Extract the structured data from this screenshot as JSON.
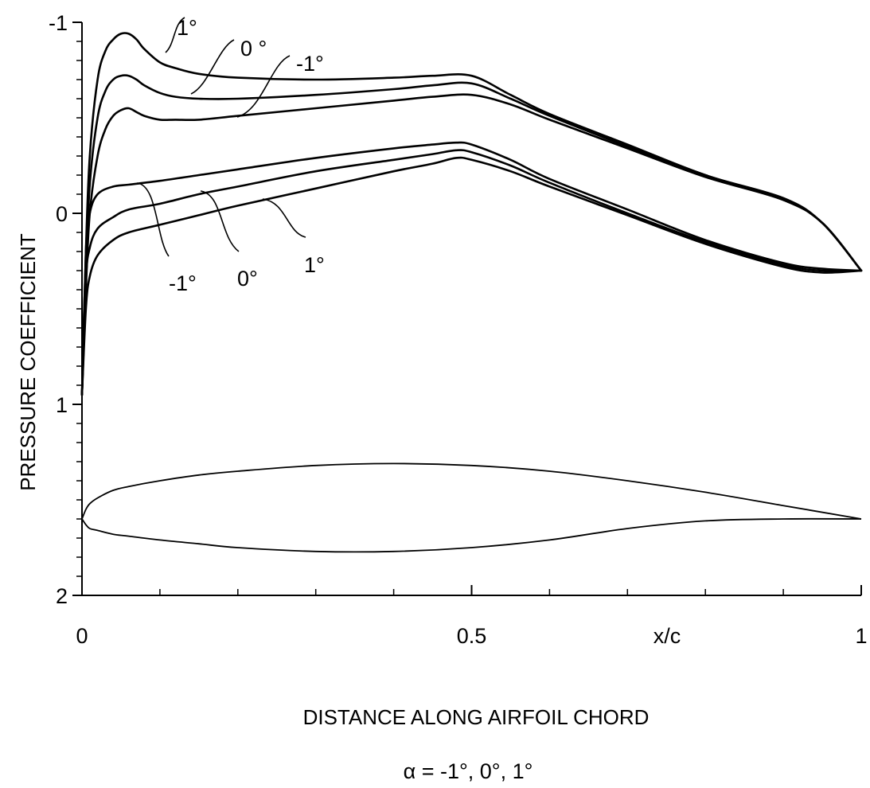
{
  "chart_data": {
    "type": "line",
    "xlabel": "DISTANCE ALONG AIRFOIL CHORD",
    "ylabel": "PRESSURE COEFFICIENT",
    "x_unit_label": "x/c",
    "subtitle": "α = -1°, 0°, 1°",
    "xlim": [
      0,
      1
    ],
    "ylim": [
      2,
      -1
    ],
    "y_inverted": true,
    "x_ticks": [
      {
        "value": 0,
        "label": "0"
      },
      {
        "value": 0.5,
        "label": "0.5"
      },
      {
        "value": 1,
        "label": "1"
      }
    ],
    "x_minor_ticks": [
      0.1,
      0.2,
      0.3,
      0.4,
      0.6,
      0.7,
      0.8,
      0.9
    ],
    "y_ticks": [
      {
        "value": -1,
        "label": "-1"
      },
      {
        "value": 0,
        "label": "0"
      },
      {
        "value": 1,
        "label": "1"
      },
      {
        "value": 2,
        "label": "2"
      }
    ],
    "y_minor_ticks": [
      -0.9,
      -0.8,
      -0.7,
      -0.6,
      -0.5,
      -0.4,
      -0.3,
      -0.2,
      -0.1,
      0.1,
      0.2,
      0.3,
      0.4,
      0.5,
      0.6,
      0.7,
      0.8,
      0.9,
      1.1,
      1.2,
      1.3,
      1.4,
      1.5,
      1.6,
      1.7,
      1.8,
      1.9
    ],
    "grid": false,
    "line_color": "#000000",
    "series": [
      {
        "name": "1°",
        "surface": "upper",
        "x": [
          0,
          0.005,
          0.01,
          0.02,
          0.03,
          0.04,
          0.05,
          0.06,
          0.07,
          0.08,
          0.1,
          0.12,
          0.15,
          0.2,
          0.3,
          0.4,
          0.45,
          0.5,
          0.55,
          0.6,
          0.7,
          0.8,
          0.9,
          0.95,
          1.0
        ],
        "y": [
          0.95,
          0.2,
          -0.3,
          -0.7,
          -0.85,
          -0.91,
          -0.94,
          -0.94,
          -0.91,
          -0.86,
          -0.79,
          -0.76,
          -0.73,
          -0.71,
          -0.7,
          -0.71,
          -0.72,
          -0.72,
          -0.62,
          -0.52,
          -0.36,
          -0.2,
          -0.08,
          0.05,
          0.3
        ]
      },
      {
        "name": "0°",
        "surface": "upper",
        "x": [
          0,
          0.005,
          0.01,
          0.02,
          0.03,
          0.04,
          0.05,
          0.06,
          0.07,
          0.08,
          0.1,
          0.12,
          0.15,
          0.2,
          0.3,
          0.4,
          0.45,
          0.5,
          0.55,
          0.6,
          0.7,
          0.8,
          0.9,
          0.95,
          1.0
        ],
        "y": [
          0.95,
          0.3,
          -0.15,
          -0.5,
          -0.64,
          -0.7,
          -0.72,
          -0.72,
          -0.7,
          -0.67,
          -0.63,
          -0.61,
          -0.6,
          -0.6,
          -0.62,
          -0.65,
          -0.67,
          -0.68,
          -0.6,
          -0.51,
          -0.35,
          -0.2,
          -0.07,
          0.05,
          0.3
        ]
      },
      {
        "name": "-1°",
        "surface": "upper",
        "x": [
          0,
          0.005,
          0.01,
          0.02,
          0.03,
          0.04,
          0.05,
          0.06,
          0.07,
          0.08,
          0.1,
          0.12,
          0.15,
          0.2,
          0.3,
          0.4,
          0.45,
          0.5,
          0.55,
          0.6,
          0.7,
          0.8,
          0.9,
          0.95,
          1.0
        ],
        "y": [
          0.95,
          0.4,
          0.0,
          -0.3,
          -0.44,
          -0.51,
          -0.54,
          -0.55,
          -0.53,
          -0.51,
          -0.49,
          -0.49,
          -0.49,
          -0.51,
          -0.55,
          -0.59,
          -0.61,
          -0.62,
          -0.57,
          -0.49,
          -0.34,
          -0.19,
          -0.07,
          0.05,
          0.3
        ]
      },
      {
        "name": "-1°",
        "surface": "lower",
        "x": [
          0,
          0.005,
          0.01,
          0.02,
          0.04,
          0.06,
          0.1,
          0.15,
          0.2,
          0.3,
          0.4,
          0.45,
          0.48,
          0.5,
          0.55,
          0.6,
          0.7,
          0.8,
          0.9,
          0.95,
          1.0
        ],
        "y": [
          0.95,
          0.2,
          0.0,
          -0.1,
          -0.14,
          -0.15,
          -0.17,
          -0.2,
          -0.23,
          -0.29,
          -0.34,
          -0.36,
          -0.37,
          -0.36,
          -0.28,
          -0.18,
          -0.02,
          0.14,
          0.26,
          0.29,
          0.3
        ]
      },
      {
        "name": "0°",
        "surface": "lower",
        "x": [
          0,
          0.005,
          0.01,
          0.02,
          0.04,
          0.06,
          0.1,
          0.15,
          0.2,
          0.3,
          0.4,
          0.45,
          0.48,
          0.5,
          0.55,
          0.6,
          0.7,
          0.8,
          0.9,
          0.95,
          1.0
        ],
        "y": [
          0.95,
          0.35,
          0.18,
          0.08,
          0.02,
          -0.02,
          -0.05,
          -0.1,
          -0.14,
          -0.22,
          -0.28,
          -0.31,
          -0.33,
          -0.32,
          -0.25,
          -0.16,
          0.0,
          0.15,
          0.27,
          0.3,
          0.3
        ]
      },
      {
        "name": "1°",
        "surface": "lower",
        "x": [
          0,
          0.005,
          0.01,
          0.02,
          0.04,
          0.06,
          0.1,
          0.15,
          0.2,
          0.3,
          0.4,
          0.45,
          0.48,
          0.5,
          0.55,
          0.6,
          0.7,
          0.8,
          0.9,
          0.95,
          1.0
        ],
        "y": [
          0.95,
          0.5,
          0.33,
          0.22,
          0.14,
          0.1,
          0.06,
          0.01,
          -0.04,
          -0.13,
          -0.22,
          -0.26,
          -0.29,
          -0.28,
          -0.22,
          -0.14,
          0.01,
          0.16,
          0.28,
          0.31,
          0.3
        ]
      }
    ],
    "curve_labels": [
      {
        "text": "1°",
        "surface": "upper"
      },
      {
        "text": "0 °",
        "surface": "upper"
      },
      {
        "text": "-1°",
        "surface": "upper"
      },
      {
        "text": "-1°",
        "surface": "lower"
      },
      {
        "text": "0°",
        "surface": "lower"
      },
      {
        "text": "1°",
        "surface": "lower"
      }
    ],
    "airfoil_outline": {
      "upper": {
        "x": [
          0,
          0.005,
          0.01,
          0.02,
          0.04,
          0.06,
          0.1,
          0.15,
          0.2,
          0.3,
          0.4,
          0.5,
          0.6,
          0.7,
          0.8,
          0.9,
          1.0
        ],
        "y": [
          1.6,
          1.55,
          1.52,
          1.49,
          1.45,
          1.43,
          1.4,
          1.37,
          1.35,
          1.32,
          1.31,
          1.32,
          1.35,
          1.4,
          1.46,
          1.53,
          1.6
        ]
      },
      "lower": {
        "x": [
          0,
          0.005,
          0.01,
          0.02,
          0.04,
          0.06,
          0.1,
          0.15,
          0.2,
          0.3,
          0.4,
          0.5,
          0.6,
          0.7,
          0.8,
          0.9,
          1.0
        ],
        "y": [
          1.6,
          1.63,
          1.65,
          1.66,
          1.68,
          1.69,
          1.71,
          1.73,
          1.75,
          1.77,
          1.77,
          1.75,
          1.71,
          1.65,
          1.61,
          1.6,
          1.6
        ]
      }
    }
  }
}
